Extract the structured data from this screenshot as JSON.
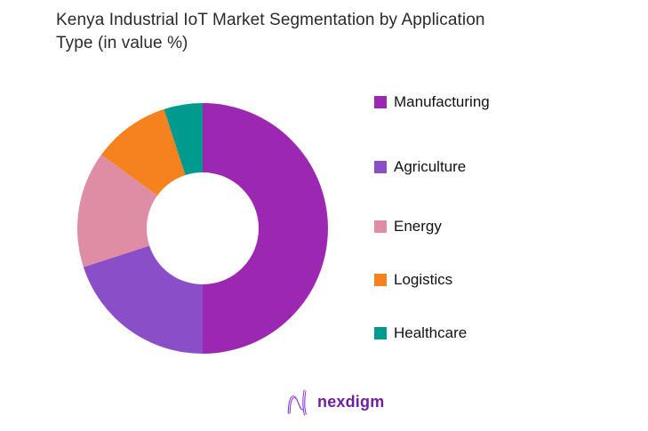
{
  "page": {
    "background": "#ffffff"
  },
  "header": {
    "title_lines": [
      "Kenya Industrial IoT Market Segmentation by Application",
      "Type (in value %)"
    ]
  },
  "chart_data": {
    "type": "pie",
    "subtype": "donut",
    "title": "Kenya Industrial IoT Market Segmentation by Application Type (in value %)",
    "categories": [
      "Manufacturing",
      "Agriculture",
      "Energy",
      "Logistics",
      "Healthcare"
    ],
    "values": [
      50,
      20,
      15,
      10,
      5
    ],
    "unit": "percent",
    "series_colors": [
      "#9C27B0",
      "#8A4FC8",
      "#DF8CA5",
      "#F5821F",
      "#009B8E"
    ],
    "start_angle_deg": 0,
    "direction": "clockwise",
    "inner_radius_ratio": 0.45,
    "legend_position": "right",
    "data_labels": "none"
  },
  "footer": {
    "logo_text": "nexdigm",
    "logo_icon": "nexdigm-n-wave-icon",
    "logo_text_color": "#6e21a1",
    "logo_icon_gradient": [
      "#6C2BD9",
      "#C83FD0"
    ]
  }
}
